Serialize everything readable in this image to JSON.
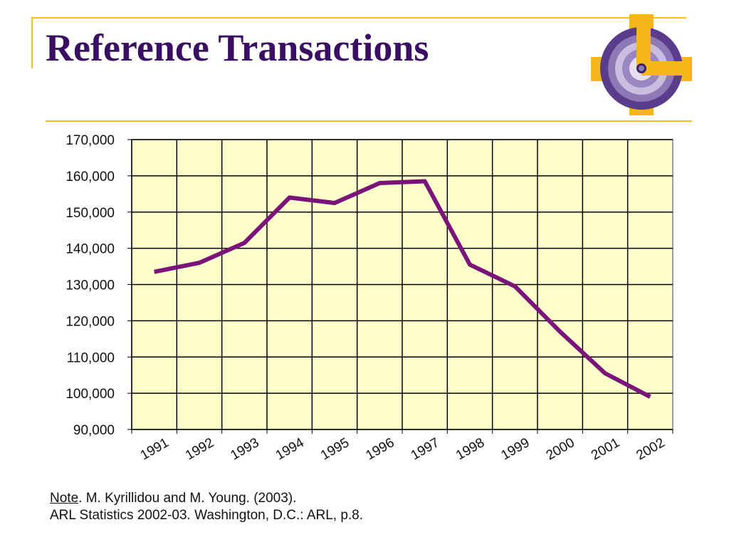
{
  "slide": {
    "title": "Reference Transactions"
  },
  "colors": {
    "title": "#3a0f63",
    "accent_gold": "#f2c21a",
    "plot_background": "#ffffcc",
    "line": "#7a137a",
    "grid": "#000000",
    "logo_purple": "#5b3c8c",
    "logo_gold": "#f5b51b"
  },
  "logo": {
    "icon": "target-gear-logo-icon"
  },
  "chart_data": {
    "type": "line",
    "title": "",
    "xlabel": "",
    "ylabel": "",
    "categories": [
      "1991",
      "1992",
      "1993",
      "1994",
      "1995",
      "1996",
      "1997",
      "1998",
      "1999",
      "2000",
      "2001",
      "2002"
    ],
    "series": [
      {
        "values": [
          133500,
          136000,
          141500,
          154000,
          152500,
          158000,
          158500,
          135500,
          129500,
          117000,
          105500,
          99000
        ]
      }
    ],
    "ylim": [
      90000,
      170000
    ],
    "y_ticks": [
      90000,
      100000,
      110000,
      120000,
      130000,
      140000,
      150000,
      160000,
      170000
    ],
    "y_tick_labels": [
      "90,000",
      "100,000",
      "110,000",
      "120,000",
      "130,000",
      "140,000",
      "150,000",
      "160,000",
      "170,000"
    ],
    "grid": true,
    "legend": "none"
  },
  "footnote": {
    "note_word": "Note",
    "citation_rest": ". M. Kyrillidou and M. Young. (2003).",
    "line2": "ARL Statistics 2002-03. Washington, D.C.: ARL, p.8."
  }
}
